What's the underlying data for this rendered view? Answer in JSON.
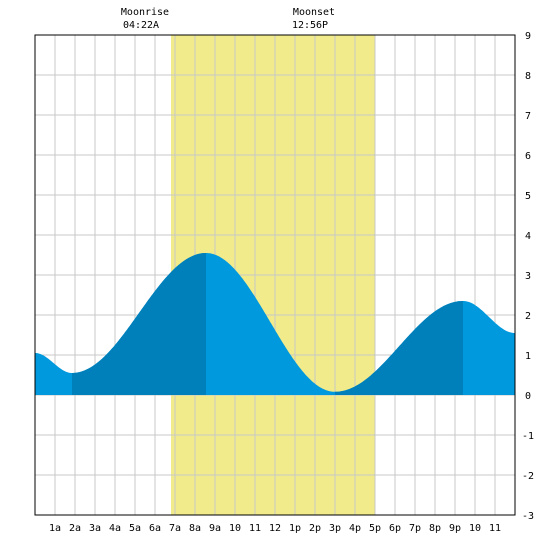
{
  "colors": {
    "daylight": "#f2eb8c",
    "tide_light": "#0099dd",
    "tide_dark": "#0080bb",
    "grid": "#c8c8c8",
    "frame": "#000000"
  },
  "moon": {
    "rise_label": "Moonrise",
    "rise_time": "04:22A",
    "set_label": "Moonset",
    "set_time": "12:56P"
  },
  "chart_data": {
    "type": "area",
    "xlim": [
      0,
      24
    ],
    "ylim": [
      -3,
      9
    ],
    "grid": true,
    "x_ticks": [
      {
        "h": 1,
        "label": "1a"
      },
      {
        "h": 2,
        "label": "2a"
      },
      {
        "h": 3,
        "label": "3a"
      },
      {
        "h": 4,
        "label": "4a"
      },
      {
        "h": 5,
        "label": "5a"
      },
      {
        "h": 6,
        "label": "6a"
      },
      {
        "h": 7,
        "label": "7a"
      },
      {
        "h": 8,
        "label": "8a"
      },
      {
        "h": 9,
        "label": "9a"
      },
      {
        "h": 10,
        "label": "10"
      },
      {
        "h": 11,
        "label": "11"
      },
      {
        "h": 12,
        "label": "12"
      },
      {
        "h": 13,
        "label": "1p"
      },
      {
        "h": 14,
        "label": "2p"
      },
      {
        "h": 15,
        "label": "3p"
      },
      {
        "h": 16,
        "label": "4p"
      },
      {
        "h": 17,
        "label": "5p"
      },
      {
        "h": 18,
        "label": "6p"
      },
      {
        "h": 19,
        "label": "7p"
      },
      {
        "h": 20,
        "label": "8p"
      },
      {
        "h": 21,
        "label": "9p"
      },
      {
        "h": 22,
        "label": "10"
      },
      {
        "h": 23,
        "label": "11"
      }
    ],
    "y_ticks": [
      9,
      8,
      7,
      6,
      5,
      4,
      3,
      2,
      1,
      0,
      -1,
      -2,
      -3
    ],
    "daylight": [
      6.8,
      17.0
    ],
    "moonrise_hour": 4.37,
    "moonset_hour": 12.93,
    "dark_bands": [
      [
        1.85,
        8.55
      ],
      [
        15.0,
        21.4
      ]
    ],
    "tide_extrema": [
      {
        "h": 0.0,
        "v": 1.05
      },
      {
        "h": 1.85,
        "v": 0.55
      },
      {
        "h": 8.55,
        "v": 3.55
      },
      {
        "h": 15.0,
        "v": 0.08
      },
      {
        "h": 21.4,
        "v": 2.35
      },
      {
        "h": 24.0,
        "v": 1.55
      }
    ]
  }
}
